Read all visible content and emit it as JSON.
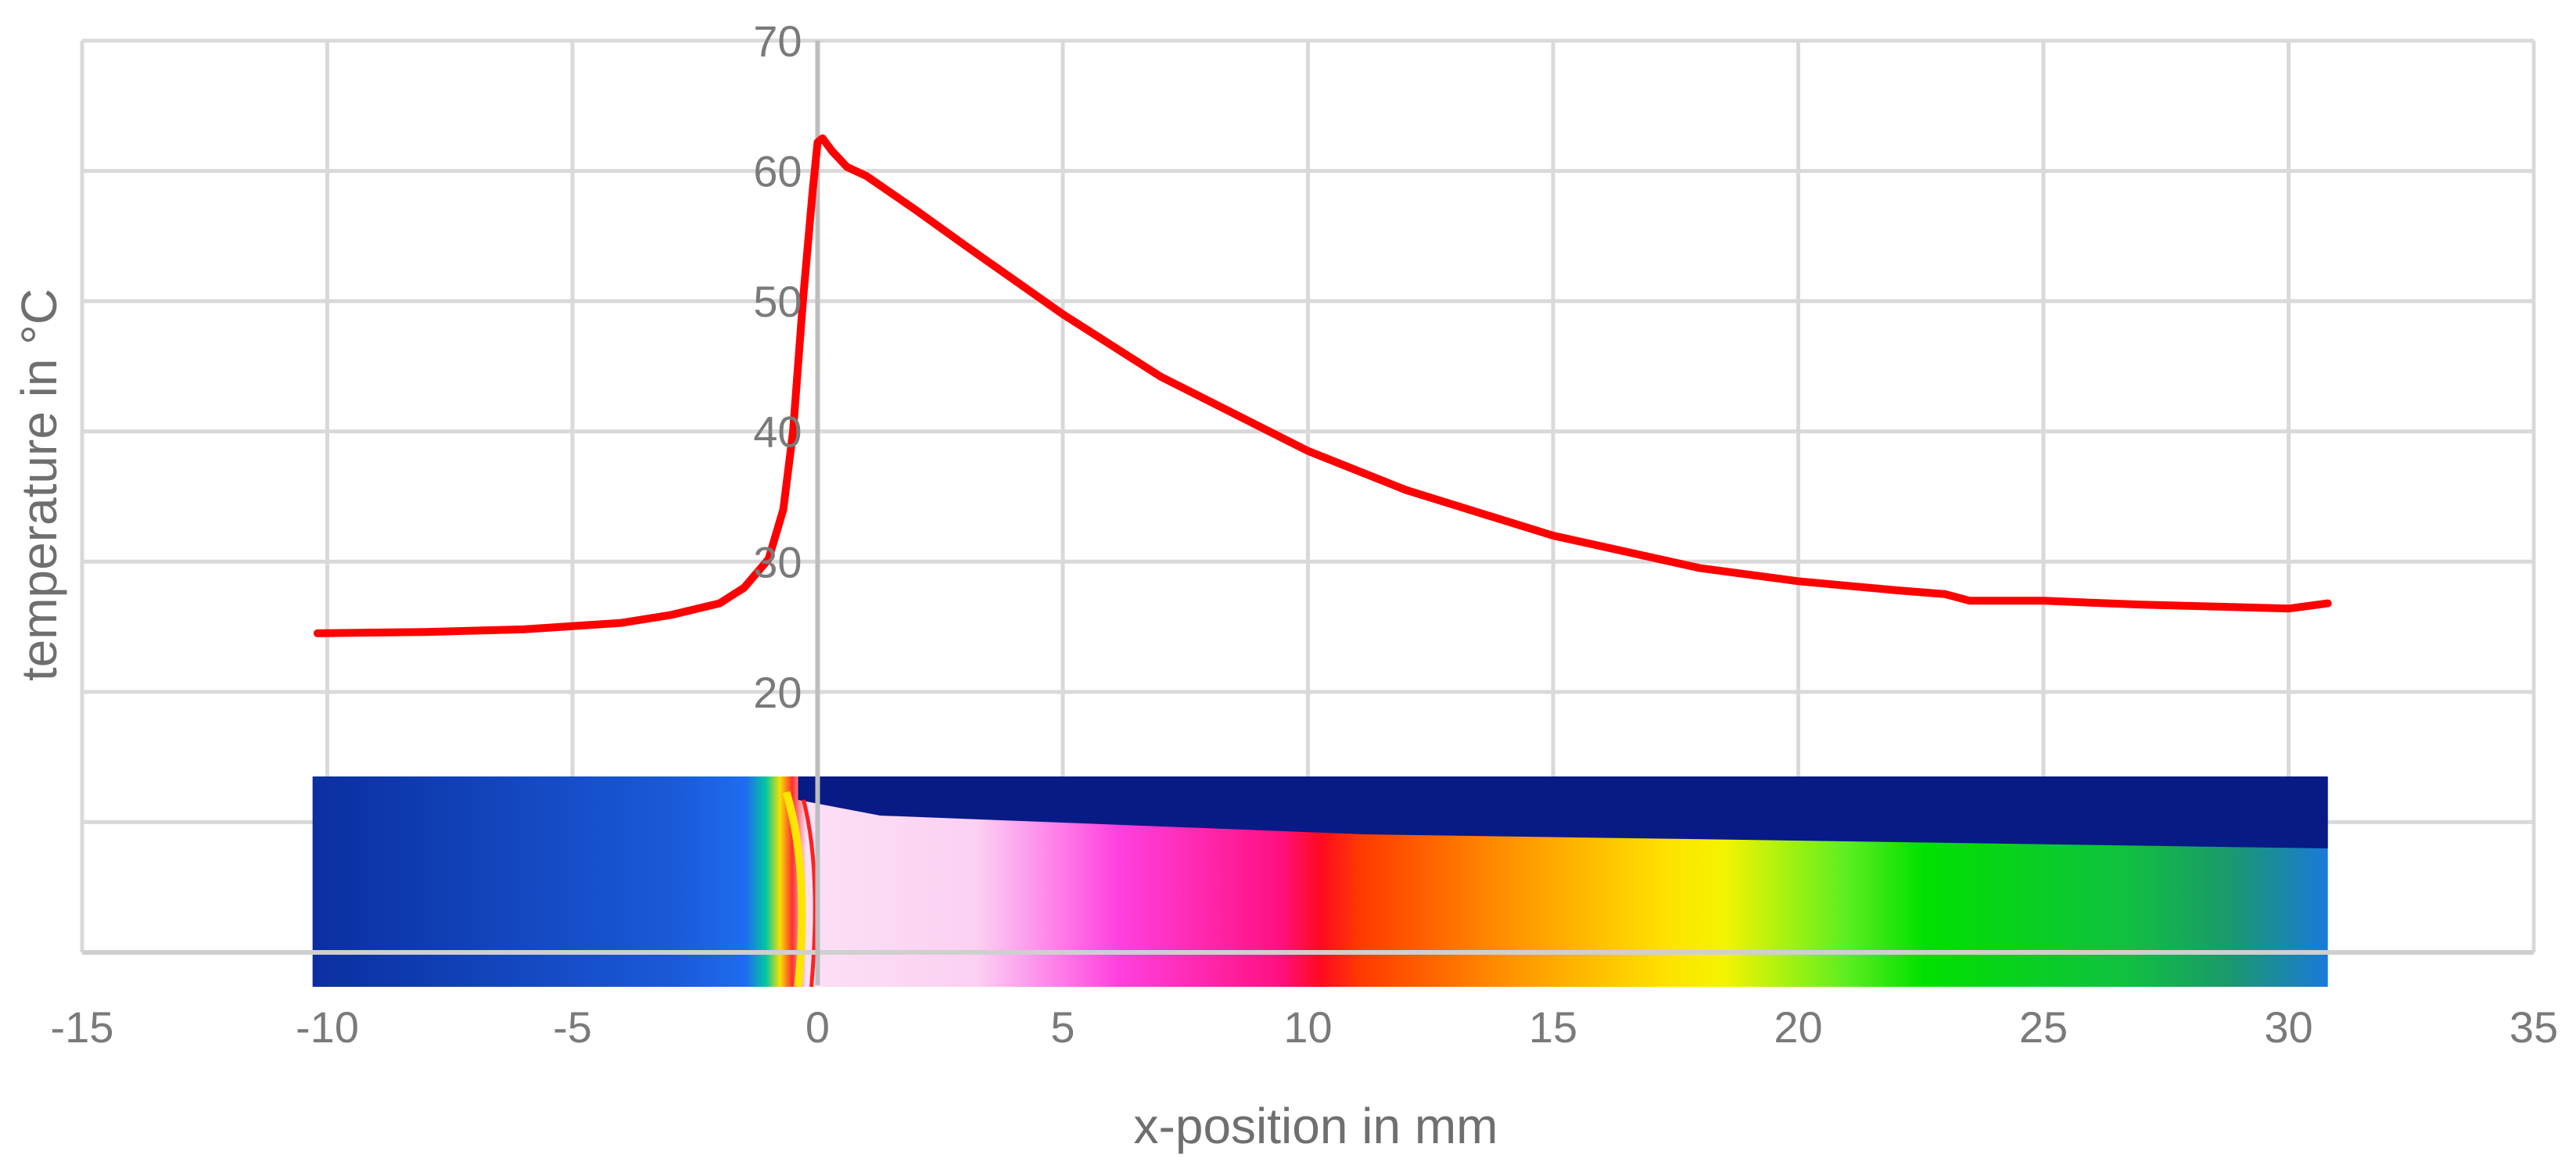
{
  "chart_data": {
    "type": "line",
    "title": "",
    "xlabel": "x-position in mm",
    "ylabel": "temperature in °C",
    "xlim": [
      -15,
      35
    ],
    "ylim": [
      0,
      70
    ],
    "x_ticks": [
      -15,
      -10,
      -5,
      0,
      5,
      10,
      15,
      20,
      25,
      30,
      35
    ],
    "x_tick_labels": [
      "-15",
      "-10",
      "-5",
      "0",
      "5",
      "10",
      "15",
      "20",
      "25",
      "30",
      "35"
    ],
    "y_gridlines": [
      0,
      10,
      20,
      30,
      40,
      50,
      60,
      70
    ],
    "y_ticks_labeled": [
      20,
      30,
      40,
      50,
      60,
      70
    ],
    "y_tick_labels": [
      "20",
      "30",
      "40",
      "50",
      "60",
      "70"
    ],
    "grid": true,
    "y_axis_at_x": 0,
    "series": [
      {
        "name": "temperature",
        "color": "#ff0000",
        "x": [
          -10.2,
          -8,
          -6,
          -4,
          -3,
          -2,
          -1.5,
          -1.0,
          -0.7,
          -0.5,
          -0.3,
          -0.1,
          0.0,
          0.1,
          0.3,
          0.6,
          1,
          2,
          3,
          5,
          7,
          10,
          12,
          15,
          18,
          20,
          22,
          23,
          23.5,
          24,
          25,
          27,
          28,
          30,
          30.8
        ],
        "y": [
          24.5,
          24.6,
          24.8,
          25.3,
          25.9,
          26.8,
          28.0,
          30.2,
          34.0,
          40.0,
          50.0,
          58.5,
          62.2,
          62.5,
          61.5,
          60.3,
          59.6,
          57.0,
          54.3,
          49.0,
          44.2,
          38.5,
          35.5,
          32.0,
          29.5,
          28.5,
          27.8,
          27.5,
          27.0,
          27.0,
          27.0,
          26.7,
          26.6,
          26.4,
          26.8
        ]
      }
    ],
    "inset": {
      "type": "thermal-image",
      "description": "infrared thermal image strip",
      "x_range": [
        -10.3,
        30.8
      ],
      "colors": {
        "cold": "#0a1a8a",
        "cool": "#1e6cf0",
        "edge_yellow": "#f8e000",
        "white_pink": "#fbe0f5",
        "magenta": "#ff00cc",
        "red": "#ff1010",
        "orange": "#ff8800",
        "yellow": "#ffee00",
        "green": "#00dd00",
        "teal": "#1a9a6a",
        "blue_end": "#1878d8"
      }
    },
    "colors": {
      "grid": "#d9d9d9",
      "axis": "#bfbfbf",
      "text": "#7a7a7a"
    }
  }
}
